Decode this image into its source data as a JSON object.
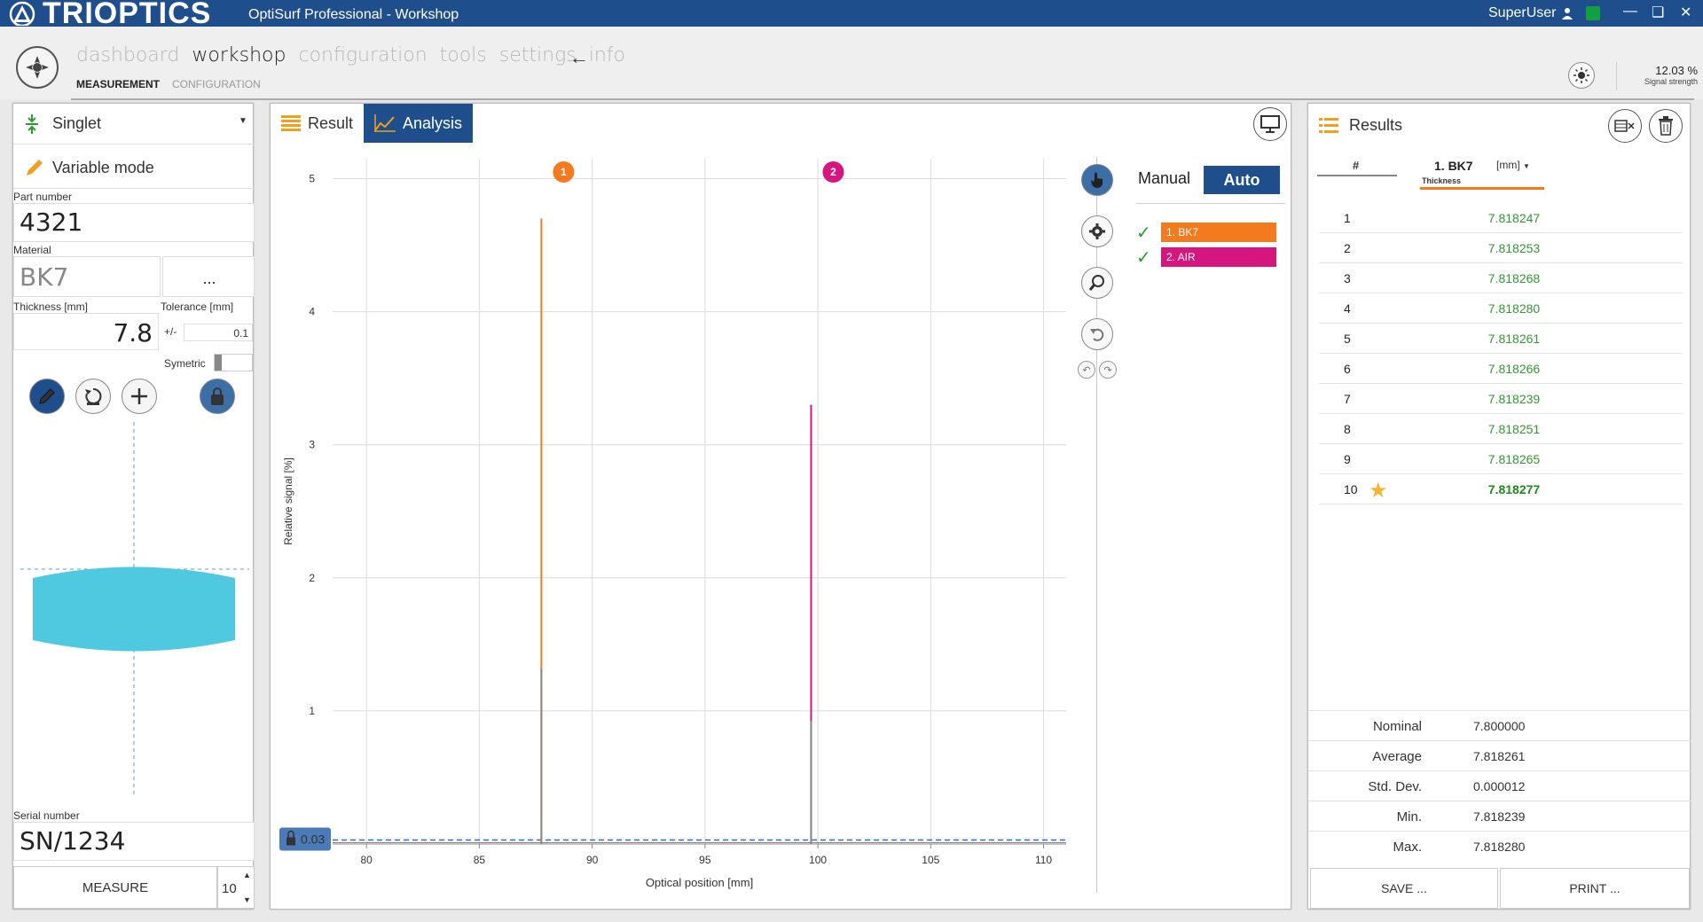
{
  "titlebar": {
    "brand": "TRIOPTICS",
    "app_title": "OptiSurf Professional - Workshop",
    "user": "SuperUser",
    "status_color": "#10a040"
  },
  "nav": {
    "tabs": [
      "dashboard",
      "workshop",
      "configuration",
      "tools",
      "settings",
      "info"
    ],
    "active_tab": "workshop",
    "subtabs": [
      "MEASUREMENT",
      "CONFIGURATION"
    ],
    "signal_value": "12.03 %",
    "signal_label": "Signal strength"
  },
  "left": {
    "lens_type": "Singlet",
    "mode": "Variable mode",
    "part_number_label": "Part number",
    "part_number": "4321",
    "material_label": "Material",
    "material": "BK7",
    "material_button": "...",
    "thickness_label": "Thickness [mm]",
    "thickness": "7.8",
    "tolerance_label": "Tolerance [mm]",
    "tolerance_prefix": "+/-",
    "tolerance": "0.1",
    "symetric_label": "Symetric",
    "serial_label": "Serial number",
    "serial_number": "SN/1234",
    "measure_button": "MEASURE",
    "measure_count": "10"
  },
  "center": {
    "tabs": [
      "Result",
      "Analysis"
    ],
    "active_tab": "Analysis",
    "mode_manual": "Manual",
    "mode_auto": "Auto",
    "threshold_value": "0.03",
    "legend": [
      {
        "label": "1. BK7",
        "color": "#f47a1f"
      },
      {
        "label": "2. AIR",
        "color": "#d6157f"
      }
    ]
  },
  "chart_data": {
    "type": "line",
    "xlabel": "Optical position [mm]",
    "ylabel": "Relative signal [%]",
    "xlim": [
      78.5,
      111
    ],
    "ylim": [
      0,
      5.15
    ],
    "xticks": [
      80,
      85,
      90,
      95,
      100,
      105,
      110
    ],
    "yticks": [
      1,
      2,
      3,
      4,
      5
    ],
    "grid": true,
    "threshold": 0.03,
    "peaks": [
      {
        "id": "1",
        "x": 87.75,
        "y": 4.7,
        "color": "#f47a1f",
        "marker_y": 5.05
      },
      {
        "id": "2",
        "x": 99.7,
        "y": 3.3,
        "color": "#d6157f",
        "marker_y": 5.05
      }
    ]
  },
  "right": {
    "title": "Results",
    "col_index": "#",
    "col_name": "1. BK7",
    "col_unit": "[mm]",
    "col_sub": "Thickness",
    "rows": [
      {
        "n": "1",
        "v": "7.818247"
      },
      {
        "n": "2",
        "v": "7.818253"
      },
      {
        "n": "3",
        "v": "7.818268"
      },
      {
        "n": "4",
        "v": "7.818280"
      },
      {
        "n": "5",
        "v": "7.818261"
      },
      {
        "n": "6",
        "v": "7.818266"
      },
      {
        "n": "7",
        "v": "7.818239"
      },
      {
        "n": "8",
        "v": "7.818251"
      },
      {
        "n": "9",
        "v": "7.818265"
      },
      {
        "n": "10",
        "v": "7.818277"
      }
    ],
    "stats": [
      {
        "k": "Nominal",
        "v": "7.800000"
      },
      {
        "k": "Average",
        "v": "7.818261"
      },
      {
        "k": "Std. Dev.",
        "v": "0.000012"
      },
      {
        "k": "Min.",
        "v": "7.818239"
      },
      {
        "k": "Max.",
        "v": "7.818280"
      }
    ],
    "save_button": "SAVE ...",
    "print_button": "PRINT ..."
  }
}
